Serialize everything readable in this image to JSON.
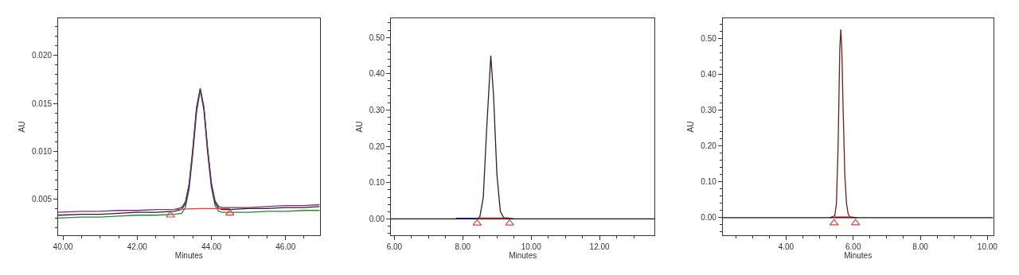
{
  "chart_data": [
    {
      "type": "line",
      "xlabel": "Minutes",
      "ylabel": "AU",
      "xlim": [
        39.87,
        46.92
      ],
      "ylim": [
        0.0012,
        0.0239
      ],
      "marker": "none",
      "line_style": "solid",
      "xticks": [
        {
          "value": 40,
          "label": "40.00"
        },
        {
          "value": 40.5,
          "label": null
        },
        {
          "value": 41,
          "label": null
        },
        {
          "value": 41.5,
          "label": null
        },
        {
          "value": 42,
          "label": "42.00"
        },
        {
          "value": 42.5,
          "label": null
        },
        {
          "value": 43,
          "label": null
        },
        {
          "value": 43.5,
          "label": null
        },
        {
          "value": 44,
          "label": "44.00"
        },
        {
          "value": 44.5,
          "label": null
        },
        {
          "value": 45,
          "label": null
        },
        {
          "value": 45.5,
          "label": null
        },
        {
          "value": 46,
          "label": "46.00"
        },
        {
          "value": 46.5,
          "label": null
        }
      ],
      "yticks": [
        {
          "value": 0.002,
          "label": null
        },
        {
          "value": 0.003,
          "label": null
        },
        {
          "value": 0.004,
          "label": null
        },
        {
          "value": 0.005,
          "label": "0.005"
        },
        {
          "value": 0.006,
          "label": null
        },
        {
          "value": 0.007,
          "label": null
        },
        {
          "value": 0.008,
          "label": null
        },
        {
          "value": 0.009,
          "label": null
        },
        {
          "value": 0.01,
          "label": "0.010"
        },
        {
          "value": 0.011,
          "label": null
        },
        {
          "value": 0.012,
          "label": null
        },
        {
          "value": 0.013,
          "label": null
        },
        {
          "value": 0.014,
          "label": null
        },
        {
          "value": 0.015,
          "label": "0.015"
        },
        {
          "value": 0.016,
          "label": null
        },
        {
          "value": 0.017,
          "label": null
        },
        {
          "value": 0.018,
          "label": null
        },
        {
          "value": 0.019,
          "label": null
        },
        {
          "value": 0.02,
          "label": "0.020"
        },
        {
          "value": 0.021,
          "label": null
        },
        {
          "value": 0.022,
          "label": null
        },
        {
          "value": 0.023,
          "label": null
        }
      ],
      "x": [
        39.87,
        40.5,
        41,
        41.5,
        42,
        42.5,
        43,
        43.2,
        43.3,
        43.4,
        43.5,
        43.6,
        43.7,
        43.8,
        43.9,
        44.0,
        44.1,
        44.2,
        44.3,
        44.5,
        45,
        45.5,
        46,
        46.5,
        46.92
      ],
      "series": [
        {
          "color": "#2e7d3a",
          "values": [
            0.003,
            0.0031,
            0.0031,
            0.0032,
            0.0033,
            0.0033,
            0.0034,
            0.0035,
            0.0041,
            0.006,
            0.0097,
            0.014,
            0.0164,
            0.0142,
            0.0098,
            0.0062,
            0.0043,
            0.0037,
            0.0036,
            0.0036,
            0.0036,
            0.0037,
            0.0037,
            0.0038,
            0.0038
          ]
        },
        {
          "color": "#222222",
          "values": [
            0.0033,
            0.0034,
            0.0034,
            0.0035,
            0.0036,
            0.0036,
            0.0037,
            0.0039,
            0.0045,
            0.0064,
            0.0101,
            0.0144,
            0.0165,
            0.0145,
            0.0101,
            0.0065,
            0.0046,
            0.004,
            0.0039,
            0.0039,
            0.004,
            0.004,
            0.0041,
            0.0041,
            0.0042
          ]
        },
        {
          "color": "#7b2c7b",
          "values": [
            0.0036,
            0.0037,
            0.0037,
            0.0038,
            0.0038,
            0.0039,
            0.0039,
            0.0041,
            0.0047,
            0.0066,
            0.0103,
            0.0146,
            0.0166,
            0.0146,
            0.0103,
            0.0067,
            0.0048,
            0.0042,
            0.0041,
            0.0041,
            0.0041,
            0.0042,
            0.0043,
            0.0043,
            0.0044
          ]
        },
        {
          "color": "#d04848",
          "x": [
            42.9,
            43.7,
            44.5
          ],
          "values": [
            0.0039,
            0.004,
            0.004
          ]
        },
        {
          "type": "scatter",
          "marker": "triangle",
          "color": "#d04848",
          "x": [
            42.9,
            44.5
          ],
          "values": [
            0.0033,
            0.0035
          ]
        }
      ]
    },
    {
      "type": "line",
      "xlabel": "Minutes",
      "ylabel": "AU",
      "xlim": [
        5.9,
        13.61
      ],
      "ylim": [
        -0.045,
        0.553
      ],
      "marker": "none",
      "line_style": "solid",
      "xticks": [
        {
          "value": 6,
          "label": "6.00"
        },
        {
          "value": 6.5,
          "label": null
        },
        {
          "value": 7,
          "label": null
        },
        {
          "value": 7.5,
          "label": null
        },
        {
          "value": 8,
          "label": "8.00"
        },
        {
          "value": 8.5,
          "label": null
        },
        {
          "value": 9,
          "label": null
        },
        {
          "value": 9.5,
          "label": null
        },
        {
          "value": 10,
          "label": "10.00"
        },
        {
          "value": 10.5,
          "label": null
        },
        {
          "value": 11,
          "label": null
        },
        {
          "value": 11.5,
          "label": null
        },
        {
          "value": 12,
          "label": "12.00"
        },
        {
          "value": 12.5,
          "label": null
        },
        {
          "value": 13,
          "label": null
        }
      ],
      "yticks": [
        {
          "value": -0.04,
          "label": null
        },
        {
          "value": -0.02,
          "label": null
        },
        {
          "value": 0,
          "label": "0.00"
        },
        {
          "value": 0.02,
          "label": null
        },
        {
          "value": 0.04,
          "label": null
        },
        {
          "value": 0.06,
          "label": null
        },
        {
          "value": 0.08,
          "label": null
        },
        {
          "value": 0.1,
          "label": "0.10"
        },
        {
          "value": 0.12,
          "label": null
        },
        {
          "value": 0.14,
          "label": null
        },
        {
          "value": 0.16,
          "label": null
        },
        {
          "value": 0.18,
          "label": null
        },
        {
          "value": 0.2,
          "label": "0.20"
        },
        {
          "value": 0.22,
          "label": null
        },
        {
          "value": 0.24,
          "label": null
        },
        {
          "value": 0.26,
          "label": null
        },
        {
          "value": 0.28,
          "label": null
        },
        {
          "value": 0.3,
          "label": "0.30"
        },
        {
          "value": 0.32,
          "label": null
        },
        {
          "value": 0.34,
          "label": null
        },
        {
          "value": 0.36,
          "label": null
        },
        {
          "value": 0.38,
          "label": null
        },
        {
          "value": 0.4,
          "label": "0.40"
        },
        {
          "value": 0.42,
          "label": null
        },
        {
          "value": 0.44,
          "label": null
        },
        {
          "value": 0.46,
          "label": null
        },
        {
          "value": 0.48,
          "label": null
        },
        {
          "value": 0.5,
          "label": "0.50"
        },
        {
          "value": 0.52,
          "label": null
        },
        {
          "value": 0.54,
          "label": null
        }
      ],
      "ref_lines": [
        {
          "axis": "y",
          "value": 0,
          "color": "#111111"
        }
      ],
      "series": [
        {
          "color": "#2a3f8f",
          "x": [
            7.8,
            8.4
          ],
          "values": [
            0.002,
            0.002
          ]
        },
        {
          "color": "#3a1a1a",
          "x": [
            8.4,
            8.5,
            8.6,
            8.7,
            8.82,
            8.9,
            9.0,
            9.1,
            9.2,
            9.5
          ],
          "values": [
            0.0,
            0.006,
            0.06,
            0.25,
            0.45,
            0.34,
            0.12,
            0.02,
            0.003,
            0.0
          ]
        },
        {
          "color": "#d04848",
          "x": [
            8.42,
            9.37
          ],
          "values": [
            0.003,
            0.003
          ]
        },
        {
          "type": "scatter",
          "marker": "triangle",
          "color": "#d04848",
          "x": [
            8.42,
            9.37
          ],
          "values": [
            -0.012,
            -0.012
          ]
        }
      ]
    },
    {
      "type": "line",
      "xlabel": "Minutes",
      "ylabel": "AU",
      "xlim": [
        2.11,
        10.17
      ],
      "ylim": [
        -0.049,
        0.556
      ],
      "marker": "none",
      "line_style": "solid",
      "xticks": [
        {
          "value": 2.5,
          "label": null
        },
        {
          "value": 3,
          "label": null
        },
        {
          "value": 3.5,
          "label": null
        },
        {
          "value": 4,
          "label": "4.00"
        },
        {
          "value": 4.5,
          "label": null
        },
        {
          "value": 5,
          "label": null
        },
        {
          "value": 5.5,
          "label": null
        },
        {
          "value": 6,
          "label": "6.00"
        },
        {
          "value": 6.5,
          "label": null
        },
        {
          "value": 7,
          "label": null
        },
        {
          "value": 7.5,
          "label": null
        },
        {
          "value": 8,
          "label": "8.00"
        },
        {
          "value": 8.5,
          "label": null
        },
        {
          "value": 9,
          "label": null
        },
        {
          "value": 9.5,
          "label": null
        },
        {
          "value": 10,
          "label": "10.00"
        }
      ],
      "yticks": [
        {
          "value": -0.04,
          "label": null
        },
        {
          "value": -0.02,
          "label": null
        },
        {
          "value": 0,
          "label": "0.00"
        },
        {
          "value": 0.02,
          "label": null
        },
        {
          "value": 0.04,
          "label": null
        },
        {
          "value": 0.06,
          "label": null
        },
        {
          "value": 0.08,
          "label": null
        },
        {
          "value": 0.1,
          "label": "0.10"
        },
        {
          "value": 0.12,
          "label": null
        },
        {
          "value": 0.14,
          "label": null
        },
        {
          "value": 0.16,
          "label": null
        },
        {
          "value": 0.18,
          "label": null
        },
        {
          "value": 0.2,
          "label": "0.20"
        },
        {
          "value": 0.22,
          "label": null
        },
        {
          "value": 0.24,
          "label": null
        },
        {
          "value": 0.26,
          "label": null
        },
        {
          "value": 0.28,
          "label": null
        },
        {
          "value": 0.3,
          "label": "0.30"
        },
        {
          "value": 0.32,
          "label": null
        },
        {
          "value": 0.34,
          "label": null
        },
        {
          "value": 0.36,
          "label": null
        },
        {
          "value": 0.38,
          "label": null
        },
        {
          "value": 0.4,
          "label": "0.40"
        },
        {
          "value": 0.42,
          "label": null
        },
        {
          "value": 0.44,
          "label": null
        },
        {
          "value": 0.46,
          "label": null
        },
        {
          "value": 0.48,
          "label": null
        },
        {
          "value": 0.5,
          "label": "0.50"
        },
        {
          "value": 0.52,
          "label": null
        },
        {
          "value": 0.54,
          "label": null
        }
      ],
      "ref_lines": [
        {
          "axis": "y",
          "value": 0,
          "color": "#111111"
        }
      ],
      "series": [
        {
          "color": "#6b1e1e",
          "x": [
            5.3,
            5.45,
            5.5,
            5.55,
            5.6,
            5.63,
            5.66,
            5.7,
            5.75,
            5.8,
            5.85,
            5.9,
            6.1
          ],
          "values": [
            0.0,
            0.005,
            0.04,
            0.2,
            0.47,
            0.525,
            0.47,
            0.3,
            0.12,
            0.04,
            0.01,
            0.002,
            0.0
          ]
        },
        {
          "color": "#d04848",
          "x": [
            5.45,
            5.95
          ],
          "values": [
            0.002,
            0.002
          ]
        },
        {
          "type": "scatter",
          "marker": "triangle",
          "color": "#d04848",
          "x": [
            5.43,
            6.07
          ],
          "values": [
            -0.015,
            -0.015
          ]
        }
      ]
    }
  ]
}
